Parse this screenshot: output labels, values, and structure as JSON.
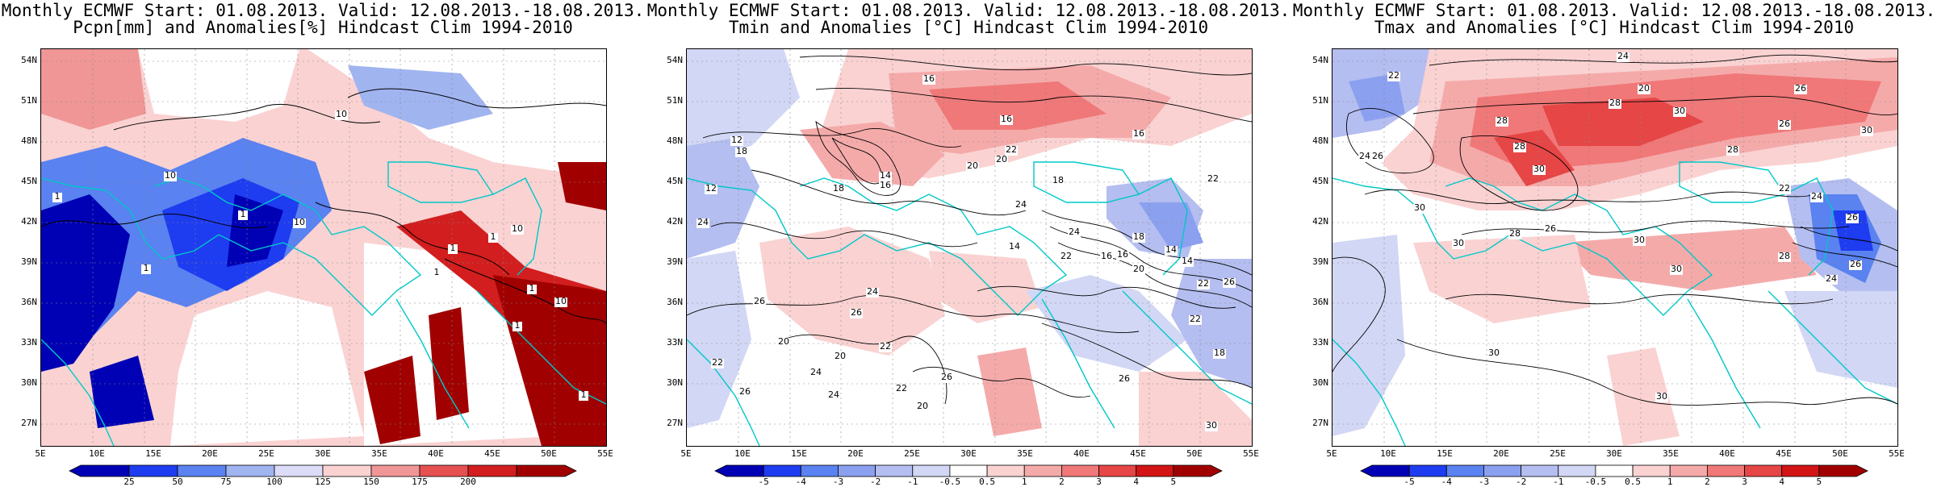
{
  "panels": [
    {
      "title_line1": "Monthly ECMWF Start: 01.08.2013. Valid: 12.08.2013.-18.08.2013.",
      "title_line2": "Pcpn[mm] and Anomalies[%] Hindcast Clim 1994-2010",
      "colorbar": {
        "labels": [
          "25",
          "50",
          "75",
          "100",
          "125",
          "150",
          "175",
          "200"
        ],
        "colors": [
          "#0000b4",
          "#1e3cf0",
          "#5a82f0",
          "#a0b4f0",
          "#dcdcf8",
          "#fad2d2",
          "#f09696",
          "#e65050",
          "#d21e1e",
          "#a00000"
        ]
      },
      "contour_labels": [
        "10",
        "10",
        "10",
        "1",
        "1",
        "1",
        "10",
        "1",
        "10",
        "1",
        "1",
        "1",
        "1",
        "10",
        "1"
      ]
    },
    {
      "title_line1": "Monthly ECMWF Start: 01.08.2013. Valid: 12.08.2013.-18.08.2013.",
      "title_line2": "Tmin and Anomalies [°C] Hindcast Clim 1994-2010",
      "colorbar": {
        "labels": [
          "-5",
          "-4",
          "-3",
          "-2",
          "-1",
          "-0.5",
          "0.5",
          "1",
          "2",
          "3",
          "4",
          "5"
        ],
        "colors": [
          "#0000b4",
          "#1e3cf0",
          "#5a82f0",
          "#8ca0f0",
          "#b4bef0",
          "#d2d7f5",
          "#ffffff",
          "#fad2d2",
          "#f5aaaa",
          "#f07878",
          "#e64646",
          "#d21414",
          "#a00000"
        ]
      },
      "contour_labels": [
        "16",
        "16",
        "16",
        "12",
        "18",
        "14",
        "16",
        "18",
        "20",
        "20",
        "22",
        "18",
        "22",
        "24",
        "12",
        "24",
        "24",
        "18",
        "16",
        "14",
        "14",
        "20",
        "22",
        "26",
        "24",
        "26",
        "20",
        "22",
        "26",
        "24",
        "26",
        "18",
        "22",
        "16",
        "14",
        "22",
        "26",
        "30",
        "20",
        "22",
        "24",
        "20",
        "22",
        "26"
      ]
    },
    {
      "title_line1": "Monthly ECMWF Start: 01.08.2013. Valid: 12.08.2013.-18.08.2013.",
      "title_line2": "Tmax and Anomalies [°C] Hindcast Clim 1994-2010",
      "colorbar": {
        "labels": [
          "-5",
          "-4",
          "-3",
          "-2",
          "-1",
          "-0.5",
          "0.5",
          "1",
          "2",
          "3",
          "4",
          "5"
        ],
        "colors": [
          "#0000b4",
          "#1e3cf0",
          "#5a82f0",
          "#8ca0f0",
          "#b4bef0",
          "#d2d7f5",
          "#ffffff",
          "#fad2d2",
          "#f5aaaa",
          "#f07878",
          "#e64646",
          "#d21414",
          "#a00000"
        ]
      },
      "contour_labels": [
        "24",
        "22",
        "20",
        "26",
        "28",
        "30",
        "28",
        "26",
        "30",
        "28",
        "28",
        "30",
        "24",
        "26",
        "24",
        "26",
        "30",
        "28",
        "26",
        "30",
        "30",
        "30",
        "28",
        "26",
        "24",
        "22",
        "30",
        "30"
      ]
    }
  ],
  "lat_labels": [
    "54N",
    "51N",
    "48N",
    "45N",
    "42N",
    "39N",
    "36N",
    "33N",
    "30N",
    "27N"
  ],
  "lon_labels": [
    "5E",
    "10E",
    "15E",
    "20E",
    "25E",
    "30E",
    "35E",
    "40E",
    "45E",
    "50E",
    "55E"
  ],
  "coast_color": "#00c8c8"
}
